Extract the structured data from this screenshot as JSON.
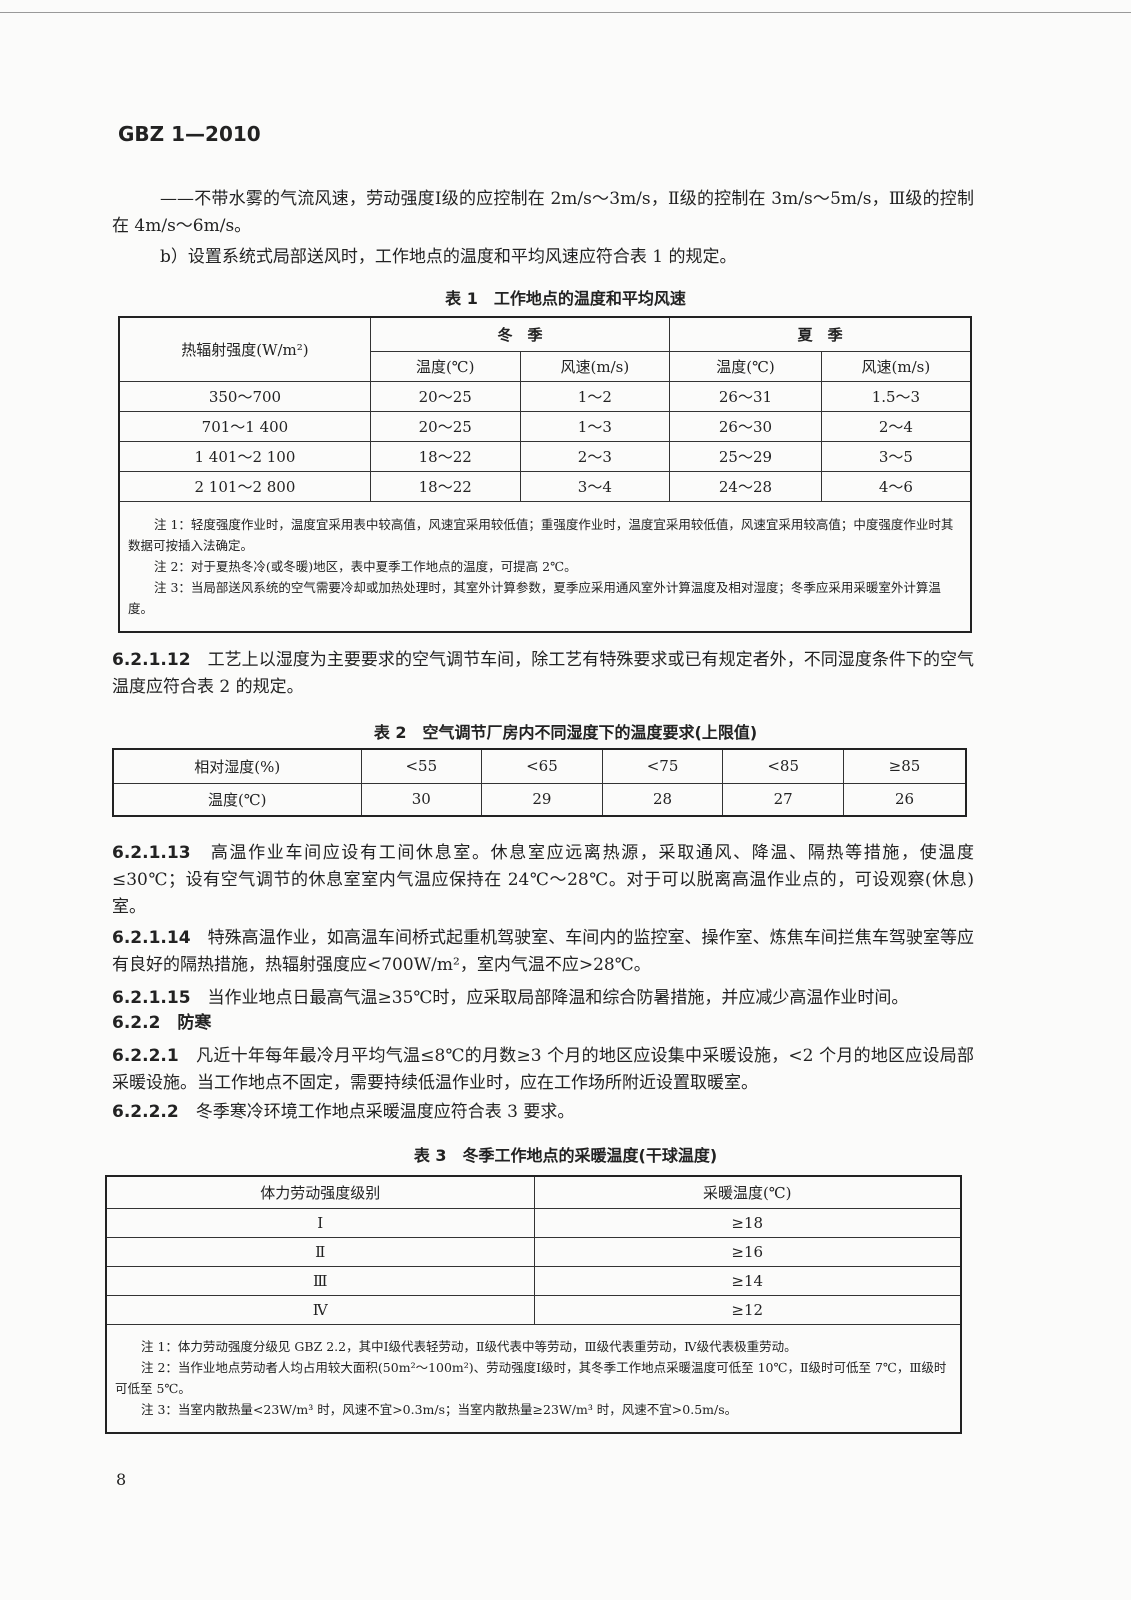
{
  "header": {
    "doc_code": "GBZ 1—2010"
  },
  "paragraphs": {
    "p1": "——不带水雾的气流风速，劳动强度Ⅰ级的应控制在 2m/s～3m/s，Ⅱ级的控制在 3m/s～5m/s，Ⅲ级的控制在 4m/s～6m/s。",
    "p2": "b）设置系统式局部送风时，工作地点的温度和平均风速应符合表 1 的规定。",
    "s12_num": "6.2.1.12",
    "s12": "工艺上以湿度为主要要求的空气调节车间，除工艺有特殊要求或已有规定者外，不同湿度条件下的空气温度应符合表 2 的规定。",
    "s13_num": "6.2.1.13",
    "s13": "高温作业车间应设有工间休息室。休息室应远离热源，采取通风、降温、隔热等措施，使温度≤30℃；设有空气调节的休息室室内气温应保持在 24℃～28℃。对于可以脱离高温作业点的，可设观察(休息)室。",
    "s14_num": "6.2.1.14",
    "s14": "特殊高温作业，如高温车间桥式起重机驾驶室、车间内的监控室、操作室、炼焦车间拦焦车驾驶室等应有良好的隔热措施，热辐射强度应<700W/m²，室内气温不应>28℃。",
    "s15_num": "6.2.1.15",
    "s15": "当作业地点日最高气温≥35℃时，应采取局部降温和综合防暑措施，并应减少高温作业时间。",
    "s22_num": "6.2.2",
    "s22": "防寒",
    "s221_num": "6.2.2.1",
    "s221": "凡近十年每年最冷月平均气温≤8℃的月数≥3 个月的地区应设集中采暖设施，<2 个月的地区应设局部采暖设施。当工作地点不固定，需要持续低温作业时，应在工作场所附近设置取暖室。",
    "s222_num": "6.2.2.2",
    "s222": "冬季寒冷环境工作地点采暖温度应符合表 3 要求。"
  },
  "table1": {
    "title": "表 1　工作地点的温度和平均风速",
    "col0": "热辐射强度(W/m²)",
    "winter": "冬　季",
    "summer": "夏　季",
    "temp": "温度(℃)",
    "wind": "风速(m/s)",
    "rows": [
      [
        "350～700",
        "20～25",
        "1～2",
        "26～31",
        "1.5～3"
      ],
      [
        "701～1 400",
        "20～25",
        "1～3",
        "26～30",
        "2～4"
      ],
      [
        "1 401～2 100",
        "18～22",
        "2～3",
        "25～29",
        "3～5"
      ],
      [
        "2 101～2 800",
        "18～22",
        "3～4",
        "24～28",
        "4～6"
      ]
    ],
    "notes": [
      "注 1：轻度强度作业时，温度宜采用表中较高值，风速宜采用较低值；重强度作业时，温度宜采用较低值，风速宜采用较高值；中度强度作业时其数据可按插入法确定。",
      "注 2：对于夏热冬冷(或冬暖)地区，表中夏季工作地点的温度，可提高 2℃。",
      "注 3：当局部送风系统的空气需要冷却或加热处理时，其室外计算参数，夏季应采用通风室外计算温度及相对湿度；冬季应采用采暖室外计算温度。"
    ]
  },
  "table2": {
    "title": "表 2　空气调节厂房内不同湿度下的温度要求(上限值)",
    "row_labels": [
      "相对湿度(%)",
      "温度(℃)"
    ],
    "humidity": [
      "<55",
      "<65",
      "<75",
      "<85",
      "≥85"
    ],
    "temperature": [
      "30",
      "29",
      "28",
      "27",
      "26"
    ]
  },
  "table3": {
    "title": "表 3　冬季工作地点的采暖温度(干球温度)",
    "headers": [
      "体力劳动强度级别",
      "采暖温度(℃)"
    ],
    "rows": [
      [
        "Ⅰ",
        "≥18"
      ],
      [
        "Ⅱ",
        "≥16"
      ],
      [
        "Ⅲ",
        "≥14"
      ],
      [
        "Ⅳ",
        "≥12"
      ]
    ],
    "notes": [
      "注 1：体力劳动强度分级见 GBZ 2.2，其中Ⅰ级代表轻劳动，Ⅱ级代表中等劳动，Ⅲ级代表重劳动，Ⅳ级代表极重劳动。",
      "注 2：当作业地点劳动者人均占用较大面积(50m²～100m²)、劳动强度Ⅰ级时，其冬季工作地点采暖温度可低至 10℃，Ⅱ级时可低至 7℃，Ⅲ级时可低至 5℃。",
      "注 3：当室内散热量<23W/m³ 时，风速不宜>0.3m/s；当室内散热量≥23W/m³ 时，风速不宜>0.5m/s。"
    ]
  },
  "footer": {
    "page_number": "8"
  }
}
